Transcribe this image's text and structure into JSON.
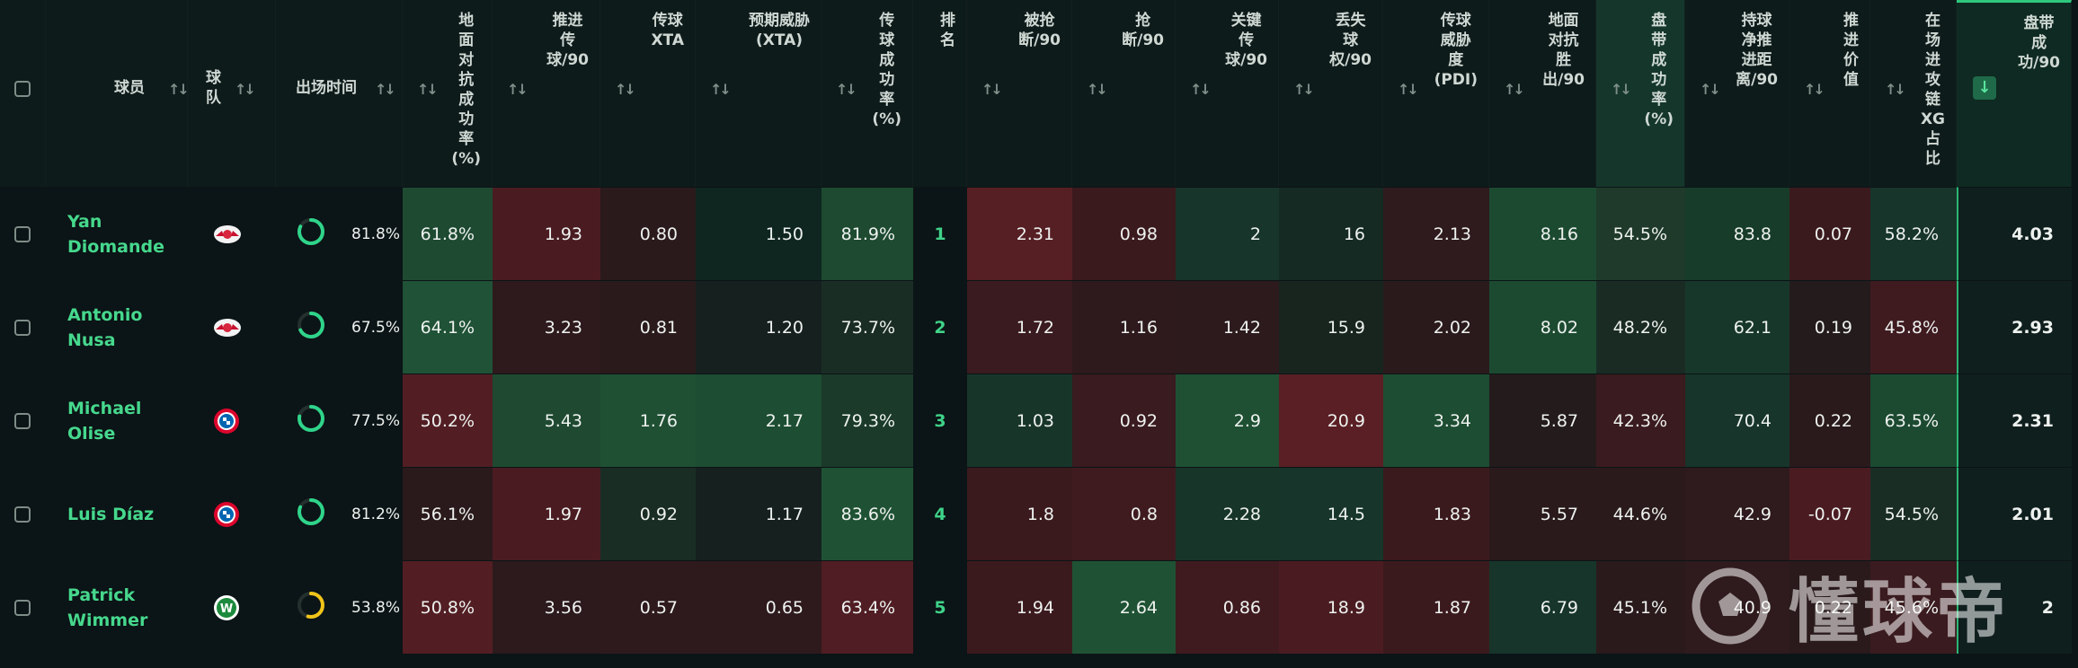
{
  "colors": {
    "accent_green": "#2ec77d",
    "heat_green_strong": "#1f5a36",
    "heat_red_strong": "#5a1f24"
  },
  "header": {
    "checkbox": "",
    "player": "球员",
    "team": "球\n队",
    "time": "出场时间",
    "columns": [
      "地\n面\n对\n抗\n成\n功\n率\n(%)",
      "推进\n传\n球/90",
      "传球\nXTA",
      "预期威胁\n(XTA)",
      "传\n球\n成\n功\n率\n(%)",
      "排\n名",
      "被抢\n断/90",
      "抢\n断/90",
      "关键\n传\n球/90",
      "丢失\n球\n权/90",
      "传球\n威胁\n度\n(PDI)",
      "地面\n对抗\n胜\n出/90",
      "盘\n带\n成\n功\n率\n(%)",
      "持球\n净推\n进距\n离/90",
      "推\n进\n价\n值",
      "在\n场\n进\n攻\n链\nXG\n占\n比",
      "盘带\n成\n功/90"
    ],
    "sort_icon": "sort-updown-icon",
    "active_sort_icon": "sort-desc-icon"
  },
  "rows": [
    {
      "player": "Yan\nDiomande",
      "team_icon": "rb-leipzig-badge-icon",
      "time": "81.8%",
      "time_fraction": 0.818,
      "ring_color": "#2fd48a",
      "values": [
        "61.8%",
        "1.93",
        "0.80",
        "1.50",
        "81.9%",
        "1",
        "2.31",
        "0.98",
        "2",
        "16",
        "2.13",
        "8.16",
        "54.5%",
        "83.8",
        "0.07",
        "58.2%",
        "4.03"
      ],
      "heat": [
        "#1e4a32",
        "#4a1c22",
        "#2a1a1c",
        "#0f2620",
        "#1d4a30",
        "rank",
        "#561f24",
        "#3b1a1e",
        "#17352a",
        "#142a22",
        "#2f1a1d",
        "#1c4a31",
        "#1f3a2a",
        "#173c2a",
        "#3b1a1e",
        "#17352a",
        "#0f1f1e"
      ]
    },
    {
      "player": "Antonio\nNusa",
      "team_icon": "rb-leipzig-badge-icon",
      "time": "67.5%",
      "time_fraction": 0.675,
      "ring_color": "#2fd48a",
      "values": [
        "64.1%",
        "3.23",
        "0.81",
        "1.20",
        "73.7%",
        "2",
        "1.72",
        "1.16",
        "1.42",
        "15.9",
        "2.02",
        "8.02",
        "48.2%",
        "62.1",
        "0.19",
        "45.8%",
        "2.93"
      ],
      "heat": [
        "#1f5236",
        "#2e1a1d",
        "#2a1a1c",
        "#16201f",
        "#1a2d25",
        "rank",
        "#3a1b1f",
        "#2e1a1d",
        "#2c1a1d",
        "#18251f",
        "#2a1a1c",
        "#1c4a31",
        "#1a2b24",
        "#17372a",
        "#241b1d",
        "#3f1b20",
        "#0f1f1e"
      ]
    },
    {
      "player": "Michael\nOlise",
      "team_icon": "bayern-munich-badge-icon",
      "time": "77.5%",
      "time_fraction": 0.775,
      "ring_color": "#2fd48a",
      "values": [
        "50.2%",
        "5.43",
        "1.76",
        "2.17",
        "79.3%",
        "3",
        "1.03",
        "0.92",
        "2.9",
        "20.9",
        "3.34",
        "5.87",
        "42.3%",
        "70.4",
        "0.22",
        "63.5%",
        "2.31"
      ],
      "heat": [
        "#521e23",
        "#1f4a31",
        "#1f5033",
        "#1d4d32",
        "#1b3a2a",
        "rank",
        "#18352a",
        "#3a1b1f",
        "#1f5033",
        "#5a1f24",
        "#1d4d32",
        "#241b1d",
        "#3a1b1f",
        "#17352a",
        "#2a1a1c",
        "#1c4a31",
        "#0f1f1e"
      ]
    },
    {
      "player": "Luis Díaz",
      "team_icon": "bayern-munich-badge-icon",
      "time": "81.2%",
      "time_fraction": 0.812,
      "ring_color": "#2fd48a",
      "values": [
        "56.1%",
        "1.97",
        "0.92",
        "1.17",
        "83.6%",
        "4",
        "1.8",
        "0.8",
        "2.28",
        "14.5",
        "1.83",
        "5.57",
        "44.6%",
        "42.9",
        "-0.07",
        "54.5%",
        "2.01"
      ],
      "heat": [
        "#2a1a1c",
        "#4a1c22",
        "#1a2d25",
        "#16201f",
        "#1f5234",
        "rank",
        "#3b1a1e",
        "#3f1b20",
        "#18352a",
        "#17352a",
        "#3b1a1e",
        "#2a1a1c",
        "#2a1a1c",
        "#2f1a1d",
        "#4a1c22",
        "#1a2d25",
        "#0f1f1e"
      ]
    },
    {
      "player": "Patrick\nWimmer",
      "team_icon": "vfl-wolfsburg-badge-icon",
      "time": "53.8%",
      "time_fraction": 0.538,
      "ring_color": "#f0c419",
      "values": [
        "50.8%",
        "3.56",
        "0.57",
        "0.65",
        "63.4%",
        "5",
        "1.94",
        "2.64",
        "0.86",
        "18.9",
        "1.87",
        "6.79",
        "45.1%",
        "40.9",
        "0.22",
        "45.6%",
        "2"
      ],
      "heat": [
        "#521e23",
        "#2c1a1d",
        "#2e1a1d",
        "#2e1a1d",
        "#4f1d23",
        "rank",
        "#3b1a1e",
        "#1f5234",
        "#3f1b20",
        "#4a1c22",
        "#3b1a1e",
        "#17352a",
        "#2a1a1c",
        "#2f1a1d",
        "#2a1a1c",
        "#3a1b1f",
        "#0f1f1e"
      ]
    }
  ],
  "watermark": {
    "text": "懂球帝",
    "icon": "dongqiudi-logo-icon"
  }
}
